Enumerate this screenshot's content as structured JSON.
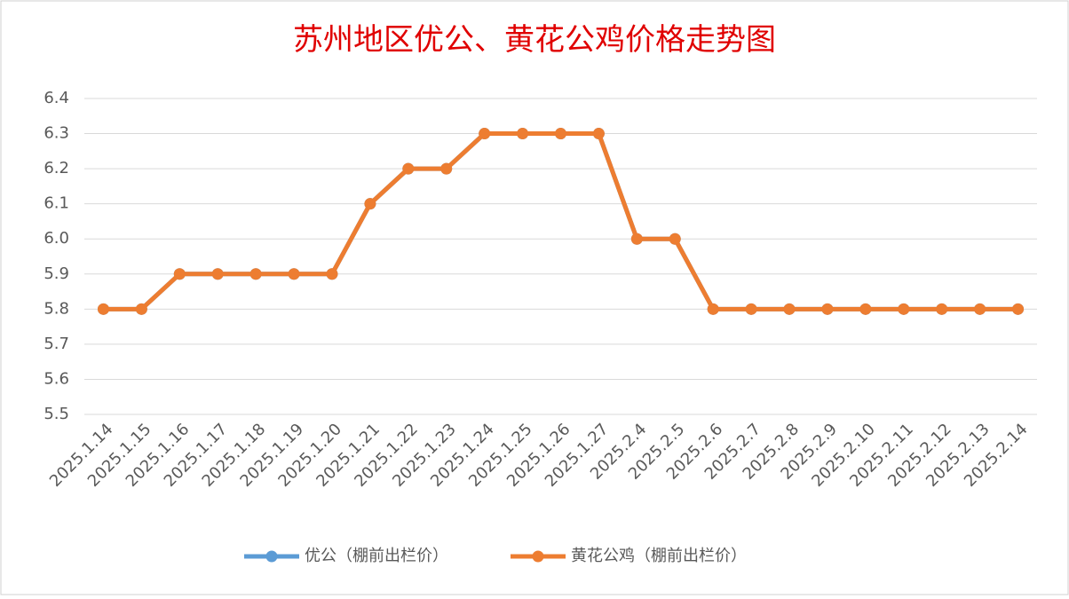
{
  "chart_data": {
    "type": "line",
    "title": "苏州地区优公、黄花公鸡价格走势图",
    "categories": [
      "2025.1.14",
      "2025.1.15",
      "2025.1.16",
      "2025.1.17",
      "2025.1.18",
      "2025.1.19",
      "2025.1.20",
      "2025.1.21",
      "2025.1.22",
      "2025.1.23",
      "2025.1.24",
      "2025.1.25",
      "2025.1.26",
      "2025.1.27",
      "2025.2.4",
      "2025.2.5",
      "2025.2.6",
      "2025.2.7",
      "2025.2.8",
      "2025.2.9",
      "2025.2.10",
      "2025.2.11",
      "2025.2.12",
      "2025.2.13",
      "2025.2.14"
    ],
    "series": [
      {
        "name": "优公（棚前出栏价）",
        "color": "#5b9bd5",
        "values": [
          5.8,
          5.8,
          5.9,
          5.9,
          5.9,
          5.9,
          5.9,
          6.1,
          6.2,
          6.2,
          6.3,
          6.3,
          6.3,
          6.3,
          6.0,
          6.0,
          5.8,
          5.8,
          5.8,
          5.8,
          5.8,
          5.8,
          5.8,
          5.8,
          5.8
        ]
      },
      {
        "name": "黄花公鸡（棚前出栏价）",
        "color": "#ed7d31",
        "values": [
          5.8,
          5.8,
          5.9,
          5.9,
          5.9,
          5.9,
          5.9,
          6.1,
          6.2,
          6.2,
          6.3,
          6.3,
          6.3,
          6.3,
          6.0,
          6.0,
          5.8,
          5.8,
          5.8,
          5.8,
          5.8,
          5.8,
          5.8,
          5.8,
          5.8
        ]
      }
    ],
    "ylim": [
      5.5,
      6.4
    ],
    "yticks": [
      5.5,
      5.6,
      5.7,
      5.8,
      5.9,
      {
        "value": 6.0,
        "label": "6.0"
      },
      6.1,
      6.2,
      6.3,
      6.4
    ],
    "grid": true,
    "legend": "bottom"
  }
}
